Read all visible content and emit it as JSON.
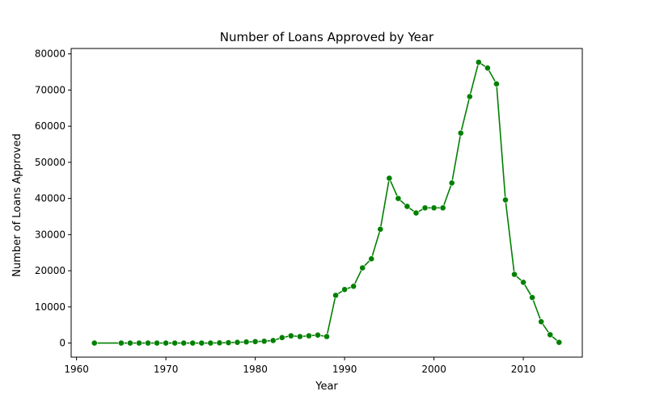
{
  "chart_data": {
    "type": "line",
    "title": "Number of Loans Approved by Year",
    "xlabel": "Year",
    "ylabel": "Number of Loans Approved",
    "xlim": [
      1959.4,
      2016.6
    ],
    "ylim": [
      -3900,
      81500
    ],
    "xticks": [
      1960,
      1970,
      1980,
      1990,
      2000,
      2010
    ],
    "yticks": [
      0,
      10000,
      20000,
      30000,
      40000,
      50000,
      60000,
      70000,
      80000
    ],
    "grid": false,
    "color": "#008000",
    "marker": "circle",
    "series": [
      {
        "x": [
          1962,
          1965,
          1966,
          1967,
          1968,
          1969,
          1970,
          1971,
          1972,
          1973,
          1974,
          1975,
          1976,
          1977,
          1978,
          1979,
          1980,
          1981,
          1982,
          1983,
          1984,
          1985,
          1986,
          1987,
          1988,
          1989,
          1990,
          1991,
          1992,
          1993,
          1994,
          1995,
          1996,
          1997,
          1998,
          1999,
          2000,
          2001,
          2002,
          2003,
          2004,
          2005,
          2006,
          2007,
          2008,
          2009,
          2010,
          2011,
          2012,
          2013,
          2014
        ],
        "y": [
          0,
          0,
          0,
          0,
          0,
          0,
          0,
          0,
          0,
          0,
          0,
          0,
          50,
          100,
          200,
          300,
          400,
          500,
          700,
          1500,
          2000,
          1800,
          2000,
          2200,
          1800,
          13200,
          14800,
          15700,
          20800,
          23300,
          31500,
          45600,
          40000,
          37800,
          36000,
          37400,
          37400,
          37400,
          44300,
          58100,
          68200,
          77700,
          76100,
          71700,
          39600,
          19000,
          16800,
          12600,
          5900,
          2300,
          200
        ]
      }
    ]
  }
}
